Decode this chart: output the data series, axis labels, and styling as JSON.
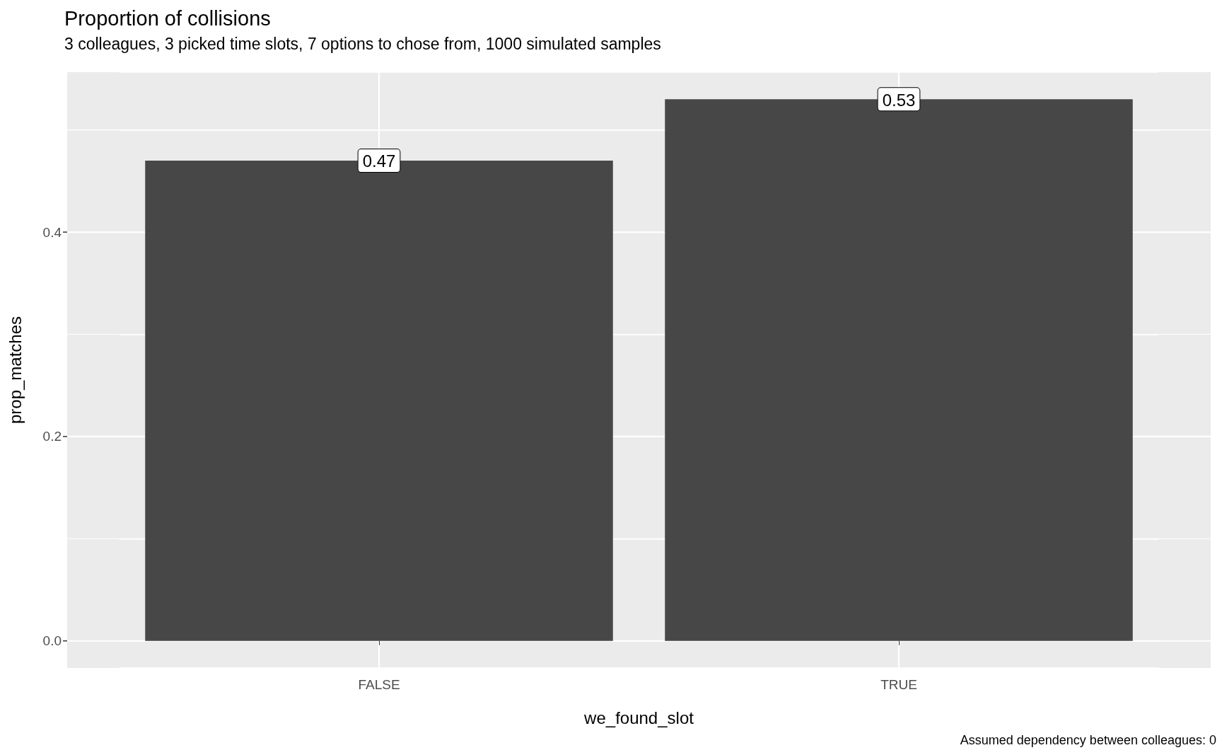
{
  "chart_data": {
    "type": "bar",
    "title": "Proportion of collisions",
    "subtitle": "3 colleagues, 3 picked time slots, 7 options to chose from, 1000 simulated samples",
    "xlabel": "we_found_slot",
    "ylabel": "prop_matches",
    "categories": [
      "FALSE",
      "TRUE"
    ],
    "values": [
      0.47,
      0.53
    ],
    "color": "#474747",
    "ylim": [
      -0.0265,
      0.5565
    ],
    "yticks": [
      {
        "value": 0,
        "label": "0.0"
      },
      {
        "value": 0.1,
        "label": null
      },
      {
        "value": 0.2,
        "label": "0.2"
      },
      {
        "value": 0.3,
        "label": null
      },
      {
        "value": 0.4,
        "label": "0.4"
      },
      {
        "value": 0.5,
        "label": null
      }
    ],
    "grid": true,
    "data_labels": true,
    "annotations": [
      "Assumed dependency between colleagues: 0"
    ]
  }
}
